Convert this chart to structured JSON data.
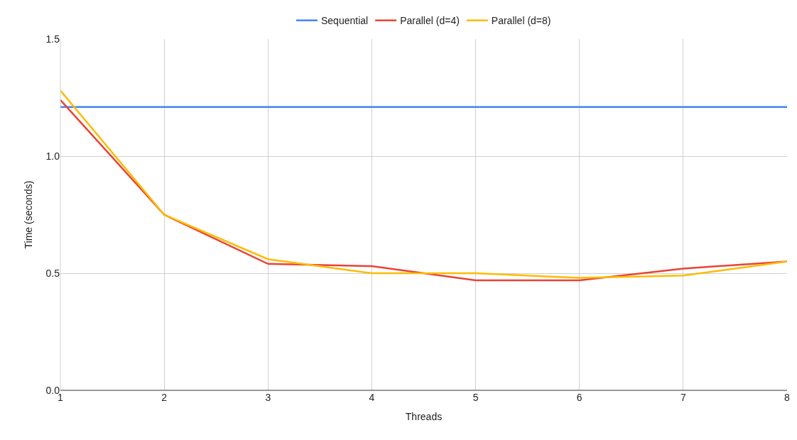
{
  "chart_data": {
    "type": "line",
    "xlabel": "Threads",
    "ylabel": "Time (seconds)",
    "x": [
      1,
      2,
      3,
      4,
      5,
      6,
      7,
      8
    ],
    "series": [
      {
        "name": "Sequential",
        "color": "#4285f4",
        "values": [
          1.21,
          1.21,
          1.21,
          1.21,
          1.21,
          1.21,
          1.21,
          1.21
        ]
      },
      {
        "name": "Parallel (d=4)",
        "color": "#ea4335",
        "values": [
          1.24,
          0.75,
          0.54,
          0.53,
          0.47,
          0.47,
          0.52,
          0.55
        ]
      },
      {
        "name": "Parallel (d=8)",
        "color": "#fbbc04",
        "values": [
          1.28,
          0.75,
          0.56,
          0.5,
          0.5,
          0.48,
          0.49,
          0.55
        ]
      }
    ],
    "xlim": [
      1,
      8
    ],
    "xticks": [
      1,
      2,
      3,
      4,
      5,
      6,
      7,
      8
    ],
    "ylim": [
      0,
      1.5
    ],
    "yticks": [
      {
        "value": 0,
        "label": "0.0"
      },
      {
        "value": 0.5,
        "label": "0.5"
      },
      {
        "value": 1,
        "label": "1.0"
      },
      {
        "value": 1.5,
        "label": "1.5"
      }
    ],
    "grid": true,
    "legend": "top",
    "marker": "none",
    "line_style": "solid"
  }
}
